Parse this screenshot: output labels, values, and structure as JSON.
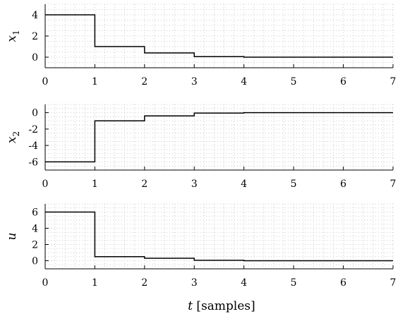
{
  "chart_data": [
    {
      "type": "line",
      "ylabel": "x",
      "ylabel_sub": "1",
      "xlabel": "",
      "xlim": [
        0,
        7
      ],
      "ylim": [
        -1,
        5
      ],
      "xticks": [
        0,
        1,
        2,
        3,
        4,
        5,
        6,
        7
      ],
      "yticks": [
        0,
        2,
        4
      ],
      "ytick_labels": [
        "0",
        "2",
        "4"
      ],
      "grid": true,
      "step": true,
      "x": [
        0,
        1,
        2,
        3,
        4,
        5,
        6,
        7
      ],
      "y": [
        4,
        1,
        0.4,
        0.05,
        0,
        0,
        0,
        0
      ]
    },
    {
      "type": "line",
      "ylabel": "x",
      "ylabel_sub": "2",
      "xlabel": "",
      "xlim": [
        0,
        7
      ],
      "ylim": [
        -7,
        1
      ],
      "xticks": [
        0,
        1,
        2,
        3,
        4,
        5,
        6,
        7
      ],
      "yticks": [
        0,
        -2,
        -4,
        -6
      ],
      "ytick_labels": [
        "0",
        "-2",
        "-4",
        "-6"
      ],
      "grid": true,
      "step": true,
      "x": [
        0,
        1,
        2,
        3,
        4,
        5,
        6,
        7
      ],
      "y": [
        -6,
        -1,
        -0.4,
        -0.05,
        0,
        0,
        0,
        0
      ]
    },
    {
      "type": "line",
      "ylabel": "u",
      "ylabel_sub": "",
      "xlabel": "t",
      "xlabel_suffix": " [samples]",
      "xlim": [
        0,
        7
      ],
      "ylim": [
        -1,
        7
      ],
      "xticks": [
        0,
        1,
        2,
        3,
        4,
        5,
        6,
        7
      ],
      "yticks": [
        0,
        2,
        4,
        6
      ],
      "ytick_labels": [
        "0",
        "2",
        "4",
        "6"
      ],
      "grid": true,
      "step": true,
      "x": [
        0,
        1,
        2,
        3,
        4,
        5,
        6,
        7
      ],
      "y": [
        6,
        0.5,
        0.3,
        0.05,
        0,
        0,
        0,
        0
      ]
    }
  ]
}
